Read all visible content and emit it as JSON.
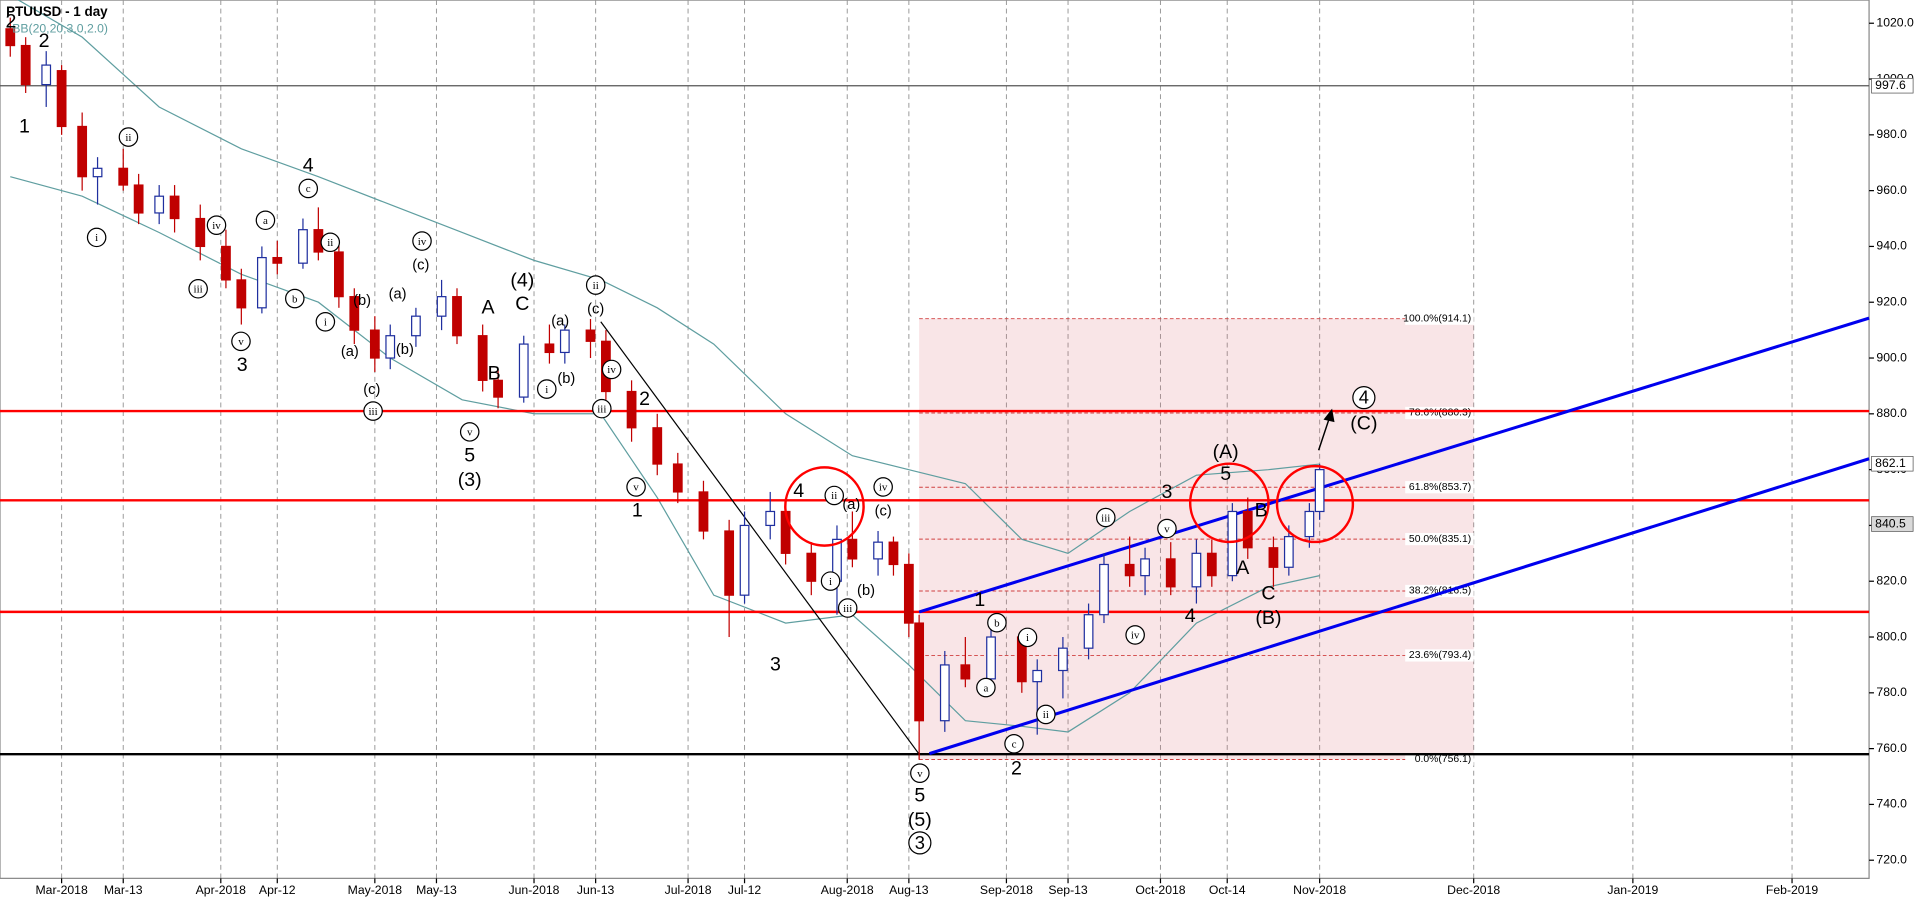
{
  "chart_data": {
    "type": "candlestick",
    "title": "PTUUSD - 1 day",
    "subtitle": "BB(20,20,3,0,2.0)",
    "xlim": [
      "2018-02-17",
      "2019-02-16"
    ],
    "xticks": [
      {
        "value": "2018-03-01",
        "label": "Mar-2018"
      },
      {
        "value": "2018-03-13",
        "label": "Mar-13"
      },
      {
        "value": "2018-04-01",
        "label": "Apr-2018"
      },
      {
        "value": "2018-04-12",
        "label": "Apr-12"
      },
      {
        "value": "2018-05-01",
        "label": "May-2018"
      },
      {
        "value": "2018-05-13",
        "label": "May-13"
      },
      {
        "value": "2018-06-01",
        "label": "Jun-2018"
      },
      {
        "value": "2018-06-13",
        "label": "Jun-13"
      },
      {
        "value": "2018-07-01",
        "label": "Jul-2018"
      },
      {
        "value": "2018-07-12",
        "label": "Jul-12"
      },
      {
        "value": "2018-08-01",
        "label": "Aug-2018"
      },
      {
        "value": "2018-08-13",
        "label": "Aug-13"
      },
      {
        "value": "2018-09-01",
        "label": "Sep-2018"
      },
      {
        "value": "2018-09-13",
        "label": "Sep-13"
      },
      {
        "value": "2018-10-01",
        "label": "Oct-2018"
      },
      {
        "value": "2018-10-14",
        "label": "Oct-14"
      },
      {
        "value": "2018-11-01",
        "label": "Nov-2018"
      },
      {
        "value": "2018-12-01",
        "label": "Dec-2018"
      },
      {
        "value": "2019-01-01",
        "label": "Jan-2019"
      },
      {
        "value": "2019-02-01",
        "label": "Feb-2019"
      }
    ],
    "ylim": [
      713.5,
      1028.3
    ],
    "yticks": [
      {
        "value": 720,
        "label": "720.0"
      },
      {
        "value": 740,
        "label": "740.0"
      },
      {
        "value": 760,
        "label": "760.0"
      },
      {
        "value": 780,
        "label": "780.0"
      },
      {
        "value": 800,
        "label": "800.0"
      },
      {
        "value": 820,
        "label": "820.0"
      },
      {
        "value": 840,
        "label": "840.0"
      },
      {
        "value": 860,
        "label": "860.0"
      },
      {
        "value": 880,
        "label": "880.0"
      },
      {
        "value": 900,
        "label": "900.0"
      },
      {
        "value": 920,
        "label": "920.0"
      },
      {
        "value": 940,
        "label": "940.0"
      },
      {
        "value": 960,
        "label": "960.0"
      },
      {
        "value": 980,
        "label": "980.0"
      },
      {
        "value": 1000,
        "label": "1000.0"
      },
      {
        "value": 1020,
        "label": "1020.0"
      }
    ],
    "grid": "x",
    "up_color": "#1f2f9f",
    "down_color": "#c00000",
    "candles": {
      "x": [
        "2018-02-19",
        "2018-02-22",
        "2018-02-26",
        "2018-03-01",
        "2018-03-05",
        "2018-03-08",
        "2018-03-13",
        "2018-03-16",
        "2018-03-20",
        "2018-03-23",
        "2018-03-28",
        "2018-04-02",
        "2018-04-05",
        "2018-04-09",
        "2018-04-12",
        "2018-04-17",
        "2018-04-20",
        "2018-04-24",
        "2018-04-27",
        "2018-05-01",
        "2018-05-04",
        "2018-05-09",
        "2018-05-14",
        "2018-05-17",
        "2018-05-22",
        "2018-05-25",
        "2018-05-30",
        "2018-06-04",
        "2018-06-07",
        "2018-06-12",
        "2018-06-15",
        "2018-06-20",
        "2018-06-25",
        "2018-06-29",
        "2018-07-04",
        "2018-07-09",
        "2018-07-12",
        "2018-07-17",
        "2018-07-20",
        "2018-07-25",
        "2018-07-30",
        "2018-08-02",
        "2018-08-07",
        "2018-08-10",
        "2018-08-13",
        "2018-08-15",
        "2018-08-20",
        "2018-08-24",
        "2018-08-29",
        "2018-09-04",
        "2018-09-07",
        "2018-09-12",
        "2018-09-17",
        "2018-09-20",
        "2018-09-25",
        "2018-09-28",
        "2018-10-03",
        "2018-10-08",
        "2018-10-11",
        "2018-10-15",
        "2018-10-18",
        "2018-10-23",
        "2018-10-26",
        "2018-10-30",
        "2018-11-01"
      ],
      "open": [
        1018,
        1012,
        998,
        1003,
        983,
        965,
        968,
        962,
        952,
        958,
        950,
        940,
        928,
        918,
        936,
        934,
        946,
        938,
        922,
        910,
        900,
        908,
        915,
        922,
        908,
        892,
        886,
        905,
        902,
        910,
        906,
        888,
        875,
        862,
        852,
        838,
        815,
        840,
        845,
        830,
        820,
        835,
        828,
        834,
        826,
        805,
        770,
        790,
        785,
        800,
        784,
        788,
        796,
        808,
        826,
        822,
        828,
        818,
        830,
        822,
        845,
        832,
        825,
        836,
        845
      ],
      "high": [
        1022,
        1015,
        1010,
        1005,
        988,
        972,
        975,
        966,
        962,
        962,
        955,
        946,
        932,
        940,
        942,
        950,
        954,
        941,
        925,
        915,
        912,
        918,
        928,
        925,
        912,
        896,
        908,
        912,
        912,
        914,
        910,
        892,
        880,
        866,
        856,
        842,
        845,
        852,
        848,
        834,
        840,
        845,
        838,
        836,
        830,
        808,
        795,
        800,
        805,
        802,
        792,
        800,
        812,
        830,
        836,
        832,
        834,
        835,
        835,
        848,
        850,
        836,
        840,
        848,
        862
      ],
      "low": [
        1008,
        995,
        990,
        980,
        960,
        955,
        960,
        948,
        948,
        945,
        935,
        925,
        912,
        916,
        930,
        932,
        935,
        918,
        905,
        895,
        896,
        904,
        910,
        905,
        888,
        882,
        884,
        898,
        898,
        900,
        885,
        870,
        858,
        848,
        835,
        800,
        812,
        835,
        826,
        815,
        808,
        825,
        822,
        822,
        800,
        756,
        766,
        782,
        780,
        780,
        765,
        778,
        792,
        805,
        818,
        815,
        815,
        812,
        818,
        820,
        828,
        818,
        822,
        832,
        842
      ],
      "close": [
        1012,
        998,
        1005,
        983,
        965,
        968,
        962,
        952,
        958,
        950,
        940,
        928,
        918,
        936,
        934,
        946,
        938,
        922,
        910,
        900,
        908,
        915,
        922,
        908,
        892,
        886,
        905,
        902,
        910,
        906,
        888,
        875,
        862,
        852,
        838,
        815,
        840,
        845,
        830,
        820,
        835,
        828,
        834,
        826,
        805,
        770,
        790,
        785,
        800,
        784,
        788,
        796,
        808,
        826,
        822,
        828,
        818,
        830,
        822,
        845,
        832,
        825,
        836,
        845,
        860
      ]
    },
    "bands": {
      "color": "#5f9ea0",
      "x": [
        "2018-02-19",
        "2018-03-05",
        "2018-03-20",
        "2018-04-05",
        "2018-04-20",
        "2018-05-04",
        "2018-05-18",
        "2018-06-01",
        "2018-06-14",
        "2018-06-25",
        "2018-07-06",
        "2018-07-20",
        "2018-08-02",
        "2018-08-13",
        "2018-08-24",
        "2018-09-04",
        "2018-09-13",
        "2018-09-25",
        "2018-10-08",
        "2018-10-22",
        "2018-11-01"
      ],
      "upper": [
        1030,
        1015,
        990,
        975,
        965,
        955,
        945,
        935,
        928,
        918,
        905,
        880,
        865,
        860,
        855,
        835,
        830,
        845,
        858,
        860,
        862
      ],
      "lower": [
        965,
        958,
        945,
        930,
        920,
        900,
        885,
        880,
        880,
        850,
        815,
        805,
        808,
        790,
        770,
        768,
        766,
        780,
        805,
        818,
        822
      ]
    },
    "hlines": [
      {
        "value": 881,
        "color": "#ff0000",
        "width": 2
      },
      {
        "value": 849,
        "color": "#ff0000",
        "width": 2
      },
      {
        "value": 809,
        "color": "#ff0000",
        "width": 2
      },
      {
        "value": 997.6,
        "color": "#555555",
        "width": 1
      },
      {
        "value": 758,
        "color": "#000000",
        "width": 2
      }
    ],
    "trendlines": [
      {
        "color": "#0000ee",
        "x": [
          "2018-08-15",
          "2019-02-16"
        ],
        "values": [
          809,
          914.3
        ]
      },
      {
        "color": "#0000ee",
        "x": [
          "2018-08-17",
          "2019-02-16"
        ],
        "values": [
          758.2,
          863.9
        ]
      },
      {
        "color": "#000000",
        "x": [
          "2018-06-14",
          "2018-08-15"
        ],
        "values": [
          913,
          758
        ]
      }
    ],
    "fib": {
      "start": "2018-08-15",
      "end": "2018-12-01",
      "levels": [
        {
          "value": 756.1,
          "label": "0.0%(756.1)"
        },
        {
          "value": 793.4,
          "label": "23.6%(793.4)"
        },
        {
          "value": 816.5,
          "label": "38.2%(816.5)"
        },
        {
          "value": 835.1,
          "label": "50.0%(835.1)"
        },
        {
          "value": 853.7,
          "label": "61.8%(853.7)"
        },
        {
          "value": 880.3,
          "label": "78.6%(880.3)"
        },
        {
          "value": 914.1,
          "label": "100.0%(914.1)"
        }
      ]
    },
    "price_labels": [
      997.6,
      862.1,
      840.5
    ],
    "annotations": [
      "2",
      "2",
      "1",
      "ii",
      "i",
      "iii",
      "iv",
      "v",
      "3",
      "a",
      "b",
      "4",
      "c",
      "ii",
      "i",
      "(b)",
      "(a)",
      "(c)",
      "iii",
      "(a)",
      "(b)",
      "iv",
      "(c)",
      "v",
      "5",
      "(3)",
      "A",
      "B",
      "(4)",
      "C",
      "(a)",
      "i",
      "(b)",
      "ii",
      "(c)",
      "iv",
      "iii",
      "2",
      "v",
      "1",
      "4",
      "ii",
      "(a)",
      "iv",
      "(c)",
      "i",
      "(b)",
      "iii",
      "3",
      "v",
      "5",
      "(5)",
      "3",
      "1",
      "b",
      "a",
      "i",
      "ii",
      "c",
      "2",
      "iii",
      "iv",
      "3",
      "v",
      "4",
      "(A)",
      "5",
      "B",
      "A",
      "C",
      "(B)",
      "4",
      "(C)"
    ]
  }
}
